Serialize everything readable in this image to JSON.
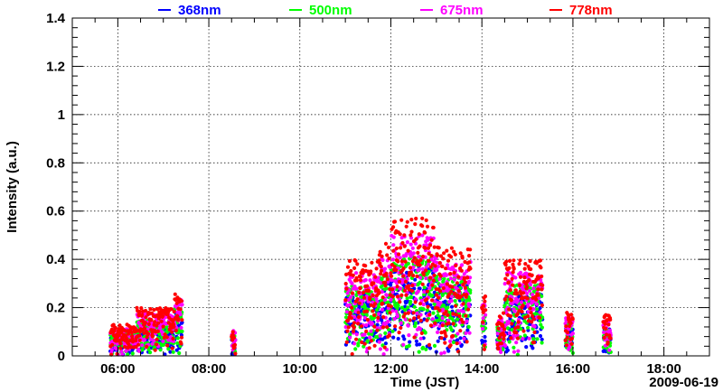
{
  "chart_data": {
    "type": "scatter",
    "title": "",
    "xlabel": "Time (JST)",
    "ylabel": "Intensity (a.u.)",
    "date_label": "2009-06-19",
    "xlim": [
      "05:00",
      "19:00"
    ],
    "ylim": [
      0,
      1.4
    ],
    "x_ticks": [
      "06:00",
      "08:00",
      "10:00",
      "12:00",
      "14:00",
      "16:00",
      "18:00"
    ],
    "y_ticks": [
      "0",
      "0.2",
      "0.4",
      "0.6",
      "0.8",
      "1",
      "1.2",
      "1.4"
    ],
    "grid": true,
    "legend_position": "top",
    "series": [
      {
        "name": "368nm",
        "color": "#0000ff",
        "max_value": 0.37
      },
      {
        "name": "500nm",
        "color": "#00ff00",
        "max_value": 0.42
      },
      {
        "name": "675nm",
        "color": "#ff00ff",
        "max_value": 0.5
      },
      {
        "name": "778nm",
        "color": "#ff0000",
        "max_value": 0.57
      }
    ],
    "activity_windows": [
      {
        "start": "05:50",
        "end": "06:25",
        "peak": 0.13
      },
      {
        "start": "06:25",
        "end": "07:15",
        "peak": 0.2
      },
      {
        "start": "07:15",
        "end": "07:25",
        "peak": 0.27
      },
      {
        "start": "08:30",
        "end": "08:35",
        "peak": 0.12
      },
      {
        "start": "11:00",
        "end": "11:45",
        "peak": 0.4
      },
      {
        "start": "11:45",
        "end": "12:00",
        "peak": 0.47
      },
      {
        "start": "12:00",
        "end": "13:00",
        "peak": 0.57
      },
      {
        "start": "13:00",
        "end": "13:45",
        "peak": 0.45
      },
      {
        "start": "14:00",
        "end": "14:05",
        "peak": 0.25
      },
      {
        "start": "14:20",
        "end": "14:30",
        "peak": 0.18
      },
      {
        "start": "14:30",
        "end": "15:20",
        "peak": 0.4
      },
      {
        "start": "15:50",
        "end": "16:00",
        "peak": 0.18
      },
      {
        "start": "16:40",
        "end": "16:50",
        "peak": 0.17
      }
    ]
  }
}
